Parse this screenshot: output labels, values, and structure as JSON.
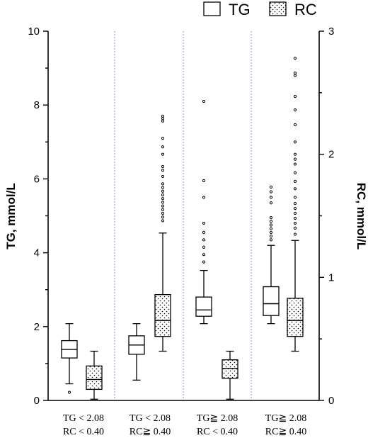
{
  "chart_data": {
    "type": "box",
    "legend": [
      {
        "name": "TG",
        "pattern": "none"
      },
      {
        "name": "RC",
        "pattern": "dots"
      }
    ],
    "legend_position": "top-right",
    "ylabel_left": "TG, mmol/L",
    "ylabel_right": "RC, mmol/L",
    "yleft_lim": [
      0,
      10
    ],
    "yleft_ticks": [
      0,
      2,
      4,
      6,
      8,
      10
    ],
    "yright_lim": [
      0,
      3
    ],
    "yright_ticks": [
      0,
      1,
      2,
      3
    ],
    "groups": [
      {
        "label_line1": "TG < 2.08",
        "label_line2": "RC < 0.40",
        "tg": {
          "min": 0.45,
          "q1": 1.15,
          "median": 1.38,
          "q3": 1.62,
          "max": 2.08,
          "outliers": [
            0.22
          ]
        },
        "rc": {
          "min": 0.01,
          "q1": 0.09,
          "median": 0.17,
          "q3": 0.28,
          "max": 0.4,
          "outliers": []
        }
      },
      {
        "label_line1": "TG < 2.08",
        "label_line2": "RC≧ 0.40",
        "tg": {
          "min": 0.55,
          "q1": 1.25,
          "median": 1.5,
          "q3": 1.75,
          "max": 2.08,
          "outliers": []
        },
        "rc": {
          "min": 0.4,
          "q1": 0.52,
          "median": 0.65,
          "q3": 0.86,
          "max": 1.36,
          "outliers": [
            1.46,
            1.49,
            1.52,
            1.55,
            1.58,
            1.61,
            1.64,
            1.67,
            1.7,
            1.73,
            1.76,
            1.82,
            1.87,
            1.9,
            2.0,
            2.06,
            2.13,
            2.27,
            2.29,
            2.31
          ]
        }
      },
      {
        "label_line1": "TG≧ 2.08",
        "label_line2": "RC < 0.40",
        "tg": {
          "min": 2.08,
          "q1": 2.28,
          "median": 2.45,
          "q3": 2.8,
          "max": 3.52,
          "outliers": [
            3.75,
            3.95,
            4.15,
            4.35,
            4.55,
            4.8,
            5.5,
            5.95,
            8.1
          ]
        },
        "rc": {
          "min": 0.01,
          "q1": 0.18,
          "median": 0.26,
          "q3": 0.33,
          "max": 0.4,
          "outliers": []
        }
      },
      {
        "label_line1": "TG≧ 2.08",
        "label_line2": "RC≧ 0.40",
        "tg": {
          "min": 2.08,
          "q1": 2.3,
          "median": 2.62,
          "q3": 3.08,
          "max": 4.2,
          "outliers": [
            4.35,
            4.45,
            4.55,
            4.65,
            4.75,
            4.85,
            4.95,
            5.35,
            5.5,
            5.65,
            5.78
          ]
        },
        "rc": {
          "min": 0.4,
          "q1": 0.52,
          "median": 0.65,
          "q3": 0.83,
          "max": 1.3,
          "outliers": [
            1.35,
            1.4,
            1.44,
            1.48,
            1.52,
            1.56,
            1.6,
            1.65,
            1.72,
            1.78,
            1.85,
            1.92,
            1.96,
            2.0,
            2.1,
            2.24,
            2.36,
            2.47,
            2.64,
            2.66,
            2.78
          ]
        }
      }
    ]
  }
}
